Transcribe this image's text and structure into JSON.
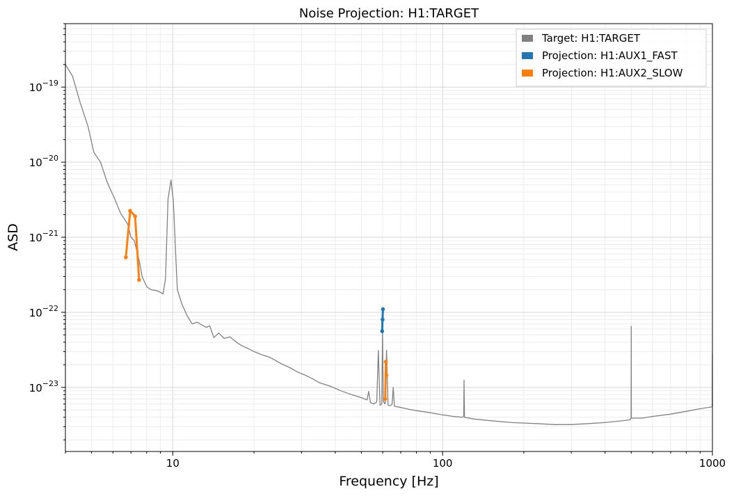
{
  "chart_data": {
    "type": "line",
    "title": "Noise Projection: H1:TARGET",
    "xlabel": "Frequency [Hz]",
    "ylabel": "ASD",
    "xscale": "log",
    "yscale": "log",
    "xlim": [
      4,
      1000
    ],
    "ylim": [
      1.4e-24,
      7e-19
    ],
    "grid": true,
    "legend_position": "top-right",
    "x_ticks": [
      {
        "value": 10,
        "label": "10"
      },
      {
        "value": 100,
        "label": "100"
      },
      {
        "value": 1000,
        "label": "1000"
      }
    ],
    "y_ticks": [
      {
        "value": 1e-23,
        "mant": "10",
        "exp": "−23"
      },
      {
        "value": 1e-22,
        "mant": "10",
        "exp": "−22"
      },
      {
        "value": 1e-21,
        "mant": "10",
        "exp": "−21"
      },
      {
        "value": 1e-20,
        "mant": "10",
        "exp": "−20"
      },
      {
        "value": 1e-19,
        "mant": "10",
        "exp": "−19"
      }
    ],
    "series": [
      {
        "name": "Target: H1:TARGET",
        "color": "#808080",
        "marker": "none",
        "points": [
          [
            4.0,
            2e-19
          ],
          [
            4.25,
            1.4e-19
          ],
          [
            4.55,
            6e-20
          ],
          [
            4.85,
            3e-20
          ],
          [
            5.1,
            1.35e-20
          ],
          [
            5.4,
            1e-20
          ],
          [
            5.7,
            5.5e-21
          ],
          [
            6.1,
            3.2e-21
          ],
          [
            6.4,
            2.1e-21
          ],
          [
            6.8,
            1.5e-21
          ],
          [
            7.0,
            1e-21
          ],
          [
            7.2,
            9e-22
          ],
          [
            7.5,
            5e-22
          ],
          [
            7.7,
            3e-22
          ],
          [
            8.0,
            2.2e-22
          ],
          [
            8.3,
            2e-22
          ],
          [
            8.7,
            1.95e-22
          ],
          [
            9.0,
            1.85e-22
          ],
          [
            9.2,
            1.75e-22
          ],
          [
            9.4,
            2.8e-22
          ],
          [
            9.6,
            3.2e-21
          ],
          [
            9.85,
            5.8e-21
          ],
          [
            10.05,
            3e-21
          ],
          [
            10.25,
            6e-22
          ],
          [
            10.4,
            2e-22
          ],
          [
            10.8,
            1.3e-22
          ],
          [
            11.3,
            9e-23
          ],
          [
            11.8,
            7e-23
          ],
          [
            12.3,
            7.4e-23
          ],
          [
            12.8,
            6.8e-23
          ],
          [
            13.3,
            6.3e-23
          ],
          [
            13.7,
            6.6e-23
          ],
          [
            14.2,
            4.6e-23
          ],
          [
            14.8,
            5.3e-23
          ],
          [
            15.5,
            4.5e-23
          ],
          [
            16.3,
            4.7e-23
          ],
          [
            17.2,
            4e-23
          ],
          [
            18.0,
            3.6e-23
          ],
          [
            19.0,
            3.3e-23
          ],
          [
            20.0,
            3e-23
          ],
          [
            21.5,
            2.7e-23
          ],
          [
            23.0,
            2.5e-23
          ],
          [
            25.0,
            2.1e-23
          ],
          [
            27.0,
            1.85e-23
          ],
          [
            29.0,
            1.6e-23
          ],
          [
            31.0,
            1.45e-23
          ],
          [
            33.0,
            1.3e-23
          ],
          [
            35.0,
            1.15e-23
          ],
          [
            38.0,
            1.05e-23
          ],
          [
            42.0,
            9e-24
          ],
          [
            46.0,
            8e-24
          ],
          [
            50.0,
            7.3e-24
          ],
          [
            52.5,
            6.8e-24
          ],
          [
            53.2,
            8.8e-24
          ],
          [
            54.0,
            6.3e-24
          ],
          [
            55.5,
            6e-24
          ],
          [
            57.0,
            6.4e-24
          ],
          [
            57.8,
            3.1e-23
          ],
          [
            58.6,
            5.8e-24
          ],
          [
            59.5,
            6e-24
          ],
          [
            59.9,
            5.5e-23
          ],
          [
            60.3,
            6.5e-24
          ],
          [
            61.2,
            6e-24
          ],
          [
            62.0,
            3.1e-23
          ],
          [
            62.8,
            5.8e-24
          ],
          [
            64.0,
            5.7e-24
          ],
          [
            65.0,
            6e-24
          ],
          [
            65.6,
            1e-23
          ],
          [
            66.3,
            5.6e-24
          ],
          [
            70.0,
            5.4e-24
          ],
          [
            75.0,
            5.1e-24
          ],
          [
            80.0,
            4.9e-24
          ],
          [
            90.0,
            4.6e-24
          ],
          [
            100.0,
            4.3e-24
          ],
          [
            110.0,
            4.1e-24
          ],
          [
            118.0,
            4e-24
          ],
          [
            119.7,
            4.1e-24
          ],
          [
            120.1,
            1.25e-23
          ],
          [
            120.5,
            4e-24
          ],
          [
            130.0,
            3.8e-24
          ],
          [
            150.0,
            3.6e-24
          ],
          [
            180.0,
            3.4e-24
          ],
          [
            220.0,
            3.3e-24
          ],
          [
            260.0,
            3.2e-24
          ],
          [
            300.0,
            3.2e-24
          ],
          [
            350.0,
            3.3e-24
          ],
          [
            400.0,
            3.4e-24
          ],
          [
            450.0,
            3.55e-24
          ],
          [
            495.0,
            3.7e-24
          ],
          [
            499.6,
            3.9e-24
          ],
          [
            500.2,
            6.5e-23
          ],
          [
            500.8,
            3.9e-24
          ],
          [
            550.0,
            3.9e-24
          ],
          [
            600.0,
            4.1e-24
          ],
          [
            700.0,
            4.4e-24
          ],
          [
            800.0,
            4.8e-24
          ],
          [
            900.0,
            5.2e-24
          ],
          [
            996.0,
            5.5e-24
          ],
          [
            998.0,
            5.6e-24
          ],
          [
            999.2,
            2.8e-23
          ],
          [
            1000.0,
            5.7e-24
          ]
        ]
      },
      {
        "name": "Projection: H1:AUX1_FAST",
        "color": "#1f77b4",
        "marker": "dot",
        "points": [
          [
            59.7,
            5.6e-23
          ],
          [
            59.9,
            8e-23
          ],
          [
            60.1,
            1.1e-22
          ]
        ]
      },
      {
        "name": "Projection: H1:AUX2_SLOW",
        "color": "#ff7f0e",
        "marker": "dot",
        "points": [
          [
            6.7,
            5.4e-22
          ],
          [
            6.95,
            2.25e-21
          ],
          [
            7.25,
            1.9e-21
          ],
          [
            7.5,
            2.7e-22
          ],
          [
            61.3,
            7e-24
          ],
          [
            61.6,
            2.2e-23
          ],
          [
            61.9,
            1.45e-23
          ]
        ]
      }
    ]
  }
}
